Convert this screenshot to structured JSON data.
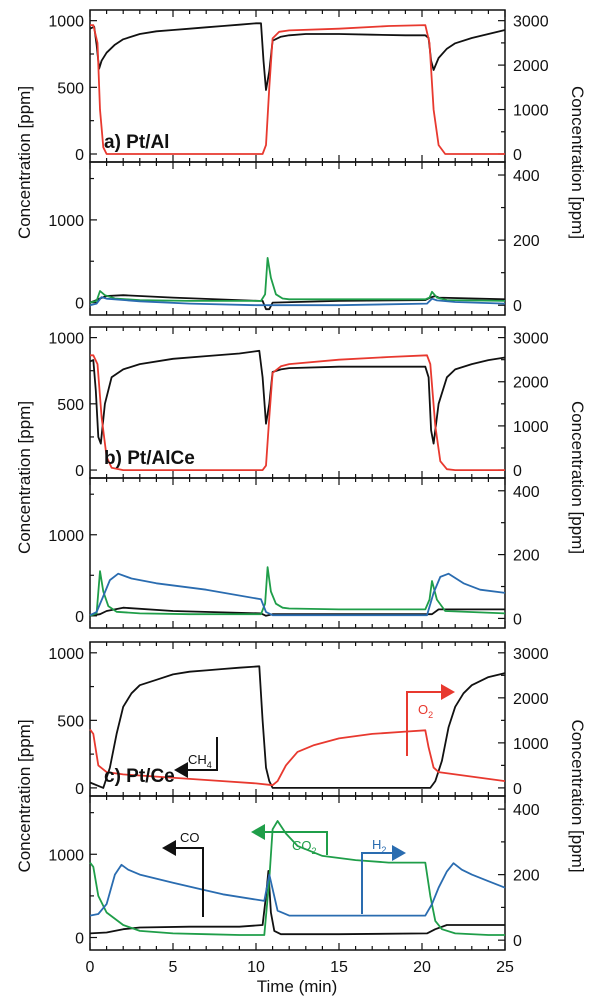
{
  "colors": {
    "ch4": "#111111",
    "o2": "#e8392f",
    "co": "#111111",
    "co2": "#1f9e49",
    "h2": "#2a6cb0"
  },
  "x_axis": {
    "label": "Time (min)",
    "range": [
      0,
      25
    ],
    "ticks": [
      0,
      5,
      10,
      15,
      20,
      25
    ]
  },
  "chart_data": [
    {
      "type": "line",
      "panel_label": "a) Pt/Al",
      "position": "upper",
      "ylabel_left": "Concentration [ppm]",
      "ylabel_right": "Concentration [ppm]",
      "ylim_left": [
        -60,
        1080
      ],
      "yticks_left": [
        0,
        500,
        1000
      ],
      "ylim_right": [
        -180,
        3240
      ],
      "yticks_right": [
        0,
        1000,
        2000,
        3000
      ],
      "series": [
        {
          "key": "ch4",
          "axis": "left",
          "x": [
            0,
            0.25,
            0.4,
            0.55,
            0.7,
            1,
            1.5,
            2,
            3,
            4,
            5,
            6,
            7,
            8,
            9,
            10,
            10.3,
            10.45,
            10.6,
            10.8,
            11,
            11.5,
            12,
            13,
            15,
            17,
            19,
            20.2,
            20.4,
            20.55,
            20.7,
            21,
            21.5,
            22,
            23,
            24,
            25
          ],
          "y": [
            940,
            955,
            820,
            640,
            700,
            760,
            820,
            860,
            900,
            920,
            930,
            940,
            950,
            960,
            970,
            980,
            980,
            700,
            480,
            620,
            850,
            880,
            890,
            900,
            900,
            895,
            890,
            890,
            870,
            700,
            630,
            720,
            790,
            830,
            870,
            900,
            930
          ]
        },
        {
          "key": "o2",
          "axis": "right",
          "x": [
            0,
            0.2,
            0.45,
            0.6,
            0.8,
            1,
            2,
            5,
            8,
            10.4,
            10.6,
            10.8,
            11,
            11.4,
            12,
            15,
            18,
            20.2,
            20.45,
            20.7,
            21,
            21.4,
            22,
            25
          ],
          "y": [
            2900,
            2900,
            2500,
            1000,
            150,
            0,
            0,
            0,
            0,
            0,
            200,
            1500,
            2600,
            2750,
            2780,
            2820,
            2880,
            2900,
            2500,
            1000,
            200,
            0,
            0,
            0
          ]
        }
      ]
    },
    {
      "type": "line",
      "panel_label": "",
      "position": "lower",
      "ylabel_left": "Concentration [ppm]",
      "ylabel_right": "Concentration [ppm]",
      "ylim_left": [
        -150,
        1700
      ],
      "yticks_left": [
        0,
        1000
      ],
      "ylim_right": [
        -30,
        440
      ],
      "yticks_right": [
        0,
        200,
        400
      ],
      "series": [
        {
          "key": "co",
          "axis": "left",
          "x": [
            0,
            0.4,
            0.6,
            1,
            2,
            5,
            10.2,
            10.4,
            10.6,
            10.8,
            11,
            15,
            20.2,
            20.5,
            20.8,
            21,
            25
          ],
          "y": [
            0,
            30,
            50,
            80,
            90,
            60,
            20,
            20,
            -80,
            -80,
            0,
            20,
            30,
            60,
            80,
            60,
            40
          ]
        },
        {
          "key": "co2",
          "axis": "left",
          "x": [
            0,
            0.4,
            0.6,
            0.9,
            1.5,
            3,
            6,
            10.3,
            10.55,
            10.7,
            10.9,
            11.2,
            11.6,
            12,
            15,
            20.2,
            20.45,
            20.6,
            20.9,
            21.5,
            25
          ],
          "y": [
            0,
            20,
            140,
            90,
            50,
            30,
            20,
            20,
            100,
            540,
            300,
            100,
            50,
            40,
            40,
            40,
            60,
            130,
            60,
            30,
            20
          ]
        },
        {
          "key": "h2",
          "axis": "right",
          "x": [
            0,
            0.4,
            0.7,
            1,
            3,
            6,
            10,
            10.3,
            10.6,
            11,
            15,
            20.3,
            20.6,
            20.9,
            22,
            25
          ],
          "y": [
            0,
            5,
            25,
            20,
            12,
            5,
            0,
            0,
            0,
            0,
            0,
            5,
            20,
            15,
            10,
            5
          ]
        }
      ]
    },
    {
      "type": "line",
      "panel_label": "b) Pt/AlCe",
      "position": "upper",
      "ylabel_left": "Concentration [ppm]",
      "ylabel_right": "Concentration [ppm]",
      "ylim_left": [
        -60,
        1080
      ],
      "yticks_left": [
        0,
        500,
        1000
      ],
      "ylim_right": [
        -180,
        3240
      ],
      "yticks_right": [
        0,
        1000,
        2000,
        3000
      ],
      "series": [
        {
          "key": "ch4",
          "axis": "left",
          "x": [
            0,
            0.2,
            0.35,
            0.5,
            0.65,
            0.9,
            1.3,
            2,
            3,
            5,
            7,
            9,
            10.2,
            10.4,
            10.6,
            10.8,
            11,
            11.5,
            12,
            15,
            20.2,
            20.4,
            20.55,
            20.7,
            21,
            21.5,
            22,
            23,
            24,
            25
          ],
          "y": [
            820,
            830,
            600,
            250,
            200,
            500,
            700,
            760,
            800,
            840,
            860,
            880,
            900,
            700,
            350,
            500,
            740,
            760,
            770,
            780,
            780,
            700,
            300,
            200,
            500,
            700,
            760,
            800,
            830,
            850
          ]
        },
        {
          "key": "o2",
          "axis": "right",
          "x": [
            0,
            0.2,
            0.45,
            0.7,
            1,
            1.3,
            2,
            5,
            8,
            10.4,
            10.6,
            10.8,
            11,
            11.5,
            12,
            15,
            18,
            20.3,
            20.5,
            20.8,
            21.1,
            21.5,
            22,
            25
          ],
          "y": [
            2600,
            2600,
            2400,
            1200,
            300,
            50,
            0,
            0,
            0,
            0,
            100,
            1200,
            2200,
            2350,
            2400,
            2500,
            2560,
            2600,
            2400,
            1000,
            200,
            20,
            0,
            0
          ]
        }
      ]
    },
    {
      "type": "line",
      "panel_label": "",
      "position": "lower",
      "ylabel_left": "Concentration [ppm]",
      "ylabel_right": "Concentration [ppm]",
      "ylim_left": [
        -150,
        1700
      ],
      "yticks_left": [
        0,
        1000
      ],
      "ylim_right": [
        -30,
        440
      ],
      "yticks_right": [
        0,
        200,
        400
      ],
      "series": [
        {
          "key": "co",
          "axis": "left",
          "x": [
            0,
            0.6,
            1,
            2,
            5,
            10.3,
            10.6,
            11,
            15,
            20.2,
            20.6,
            21,
            25
          ],
          "y": [
            0,
            20,
            60,
            100,
            60,
            30,
            0,
            20,
            20,
            20,
            20,
            80,
            80
          ]
        },
        {
          "key": "co2",
          "axis": "left",
          "x": [
            0,
            0.4,
            0.6,
            0.8,
            1.1,
            1.6,
            3,
            6,
            10.3,
            10.55,
            10.7,
            10.9,
            11.2,
            11.6,
            12,
            15,
            20.2,
            20.45,
            20.6,
            20.9,
            21.4,
            25
          ],
          "y": [
            0,
            30,
            550,
            300,
            120,
            50,
            30,
            20,
            20,
            150,
            600,
            300,
            150,
            100,
            90,
            80,
            80,
            200,
            430,
            200,
            60,
            30
          ]
        },
        {
          "key": "h2",
          "axis": "right",
          "x": [
            0,
            0.4,
            0.8,
            1.2,
            1.7,
            2.5,
            4,
            7,
            10.3,
            10.6,
            11,
            12,
            15,
            20.3,
            20.7,
            21.1,
            21.6,
            22.5,
            23.5,
            25
          ],
          "y": [
            10,
            20,
            70,
            120,
            140,
            125,
            110,
            90,
            60,
            20,
            10,
            10,
            10,
            10,
            80,
            130,
            140,
            110,
            90,
            80
          ]
        }
      ]
    },
    {
      "type": "line",
      "panel_label": "c) Pt/Ce",
      "position": "upper",
      "ylabel_left": "Concentration [ppm]",
      "ylabel_right": "Concentration [ppm]",
      "ylim_left": [
        -60,
        1080
      ],
      "yticks_left": [
        0,
        500,
        1000
      ],
      "ylim_right": [
        -180,
        3240
      ],
      "yticks_right": [
        0,
        1000,
        2000,
        3000
      ],
      "series": [
        {
          "key": "ch4",
          "axis": "left",
          "x": [
            0,
            0.4,
            0.8,
            1.2,
            1.6,
            2,
            2.5,
            3,
            4,
            5,
            6,
            7,
            8,
            9,
            10.2,
            10.4,
            10.6,
            10.8,
            11,
            11.5,
            12,
            15,
            18,
            20.3,
            20.5,
            20.8,
            21.2,
            21.6,
            22,
            22.5,
            23,
            24,
            25
          ],
          "y": [
            40,
            20,
            0,
            150,
            400,
            600,
            700,
            760,
            800,
            840,
            860,
            870,
            880,
            890,
            900,
            500,
            150,
            50,
            0,
            0,
            0,
            0,
            0,
            0,
            0,
            50,
            200,
            450,
            600,
            700,
            760,
            820,
            850
          ]
        },
        {
          "key": "o2",
          "axis": "right",
          "x": [
            0,
            0.2,
            0.5,
            1,
            2,
            4,
            6,
            8,
            10,
            11,
            11.3,
            11.8,
            12.5,
            13.5,
            15,
            17,
            19,
            20.2,
            20.4,
            20.7,
            21,
            22,
            24,
            25
          ],
          "y": [
            1300,
            1200,
            500,
            350,
            300,
            250,
            200,
            150,
            100,
            60,
            150,
            500,
            800,
            950,
            1100,
            1200,
            1250,
            1280,
            900,
            450,
            350,
            300,
            200,
            150
          ]
        }
      ]
    },
    {
      "type": "line",
      "panel_label": "",
      "position": "lower",
      "ylabel_left": "Concentration [ppm]",
      "ylabel_right": "Concentration [ppm]",
      "ylim_left": [
        -150,
        1700
      ],
      "yticks_left": [
        0,
        1000
      ],
      "ylim_right": [
        -30,
        440
      ],
      "yticks_right": [
        0,
        200,
        400
      ],
      "series": [
        {
          "key": "co",
          "axis": "left",
          "x": [
            0,
            1,
            2,
            3,
            6,
            9,
            10.4,
            10.6,
            10.75,
            10.9,
            11.1,
            11.5,
            15,
            20.3,
            20.8,
            21.5,
            25
          ],
          "y": [
            50,
            60,
            100,
            120,
            130,
            130,
            150,
            500,
            800,
            300,
            80,
            40,
            40,
            50,
            100,
            150,
            150
          ]
        },
        {
          "key": "co2",
          "axis": "left",
          "x": [
            0,
            0.2,
            0.5,
            1,
            2,
            3,
            5,
            7,
            9,
            10.5,
            10.8,
            11,
            11.3,
            11.8,
            12.5,
            14,
            16,
            18,
            20.2,
            20.5,
            20.8,
            21.2,
            22,
            24,
            25
          ],
          "y": [
            900,
            850,
            500,
            300,
            150,
            80,
            50,
            40,
            30,
            30,
            700,
            1300,
            1400,
            1250,
            1100,
            980,
            930,
            900,
            900,
            500,
            200,
            100,
            50,
            30,
            30
          ]
        },
        {
          "key": "h2",
          "axis": "right",
          "x": [
            0,
            0.5,
            1,
            1.5,
            1.9,
            2.3,
            3,
            5,
            8,
            10.5,
            10.8,
            11.3,
            12,
            15,
            18,
            20.2,
            20.6,
            21,
            21.5,
            21.9,
            22.4,
            23,
            24,
            25
          ],
          "y": [
            75,
            80,
            110,
            200,
            230,
            215,
            200,
            175,
            140,
            120,
            200,
            90,
            75,
            75,
            75,
            75,
            110,
            160,
            210,
            235,
            215,
            200,
            180,
            160
          ]
        }
      ]
    }
  ],
  "annotations": [
    {
      "text": "CH",
      "sub": "4",
      "color_key": "ch4",
      "panel": 4
    },
    {
      "text": "O",
      "sub": "2",
      "color_key": "o2",
      "panel": 4
    },
    {
      "text": "CO",
      "sub": "",
      "color_key": "co",
      "panel": 5
    },
    {
      "text": "CO",
      "sub": "2",
      "color_key": "co2",
      "panel": 5
    },
    {
      "text": "H",
      "sub": "2",
      "color_key": "h2",
      "panel": 5
    }
  ]
}
